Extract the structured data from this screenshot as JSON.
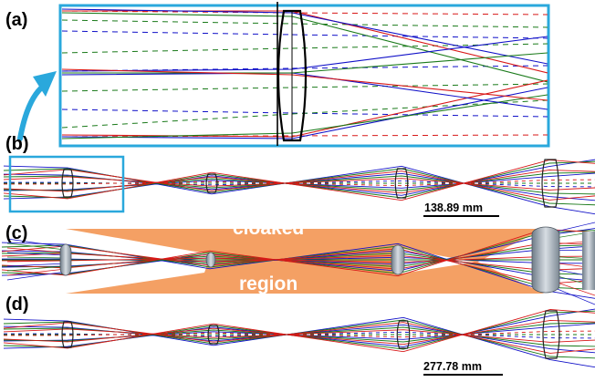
{
  "panels": {
    "a": {
      "label": "(a)"
    },
    "b": {
      "label": "(b)"
    },
    "c": {
      "label": "(c)"
    },
    "d": {
      "label": "(d)"
    }
  },
  "scale_bars": {
    "b": {
      "text": "138.89 mm"
    },
    "d": {
      "text": "277.78 mm"
    }
  },
  "cloak": {
    "word1": "cloaked",
    "word2": "region"
  },
  "colors": {
    "ray_blue": "#1010c8",
    "ray_green": "#1a7a1a",
    "ray_red": "#d81818",
    "highlight": "#2aa8dc",
    "cloak_fill": "#f4a064",
    "lens_fill": "#9aa7b3",
    "lens_edge": "#222222"
  }
}
